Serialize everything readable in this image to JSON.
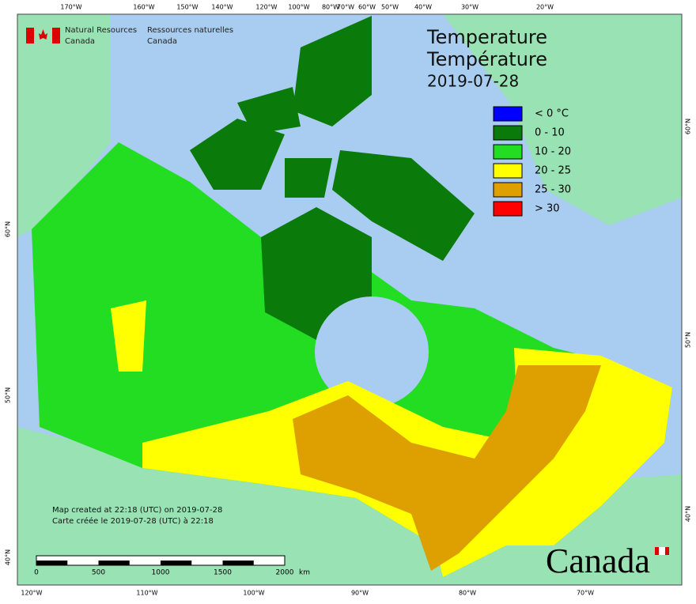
{
  "header": {
    "agency_en": [
      "Natural Resources",
      "Canada"
    ],
    "agency_fr": [
      "Ressources naturelles",
      "Canada"
    ]
  },
  "title": [
    "Temperature",
    "Température"
  ],
  "date": "2019-07-28",
  "legend": [
    {
      "label": "< 0 °C",
      "color": "#0000ff"
    },
    {
      "label": "0 - 10",
      "color": "#0a7a0a"
    },
    {
      "label": "10 - 20",
      "color": "#22dd22"
    },
    {
      "label": "20 - 25",
      "color": "#ffff00"
    },
    {
      "label": "25 - 30",
      "color": "#dda000"
    },
    {
      "label": "> 30",
      "color": "#ff0000"
    }
  ],
  "top_labels": [
    "170°W",
    "160°W",
    "150°W",
    "140°W",
    "120°W",
    "100°W",
    "80°W",
    "70°W",
    "60°W",
    "50°W",
    "40°W",
    "30°W",
    "20°W"
  ],
  "bottom_labels": [
    "120°W",
    "110°W",
    "100°W",
    "90°W",
    "80°W",
    "70°W"
  ],
  "left_labels": [
    "60°N",
    "50°N",
    "40°N"
  ],
  "right_labels": [
    "60°N",
    "50°N",
    "40°N"
  ],
  "credits": [
    "Map created at 22:18 (UTC) on 2019-07-28",
    "Carte créée le 2019-07-28 (UTC) à 22:18"
  ],
  "scale": {
    "ticks": [
      "0",
      "500",
      "1000",
      "1500",
      "2000"
    ],
    "unit": "km"
  },
  "wordmark": "Canada"
}
